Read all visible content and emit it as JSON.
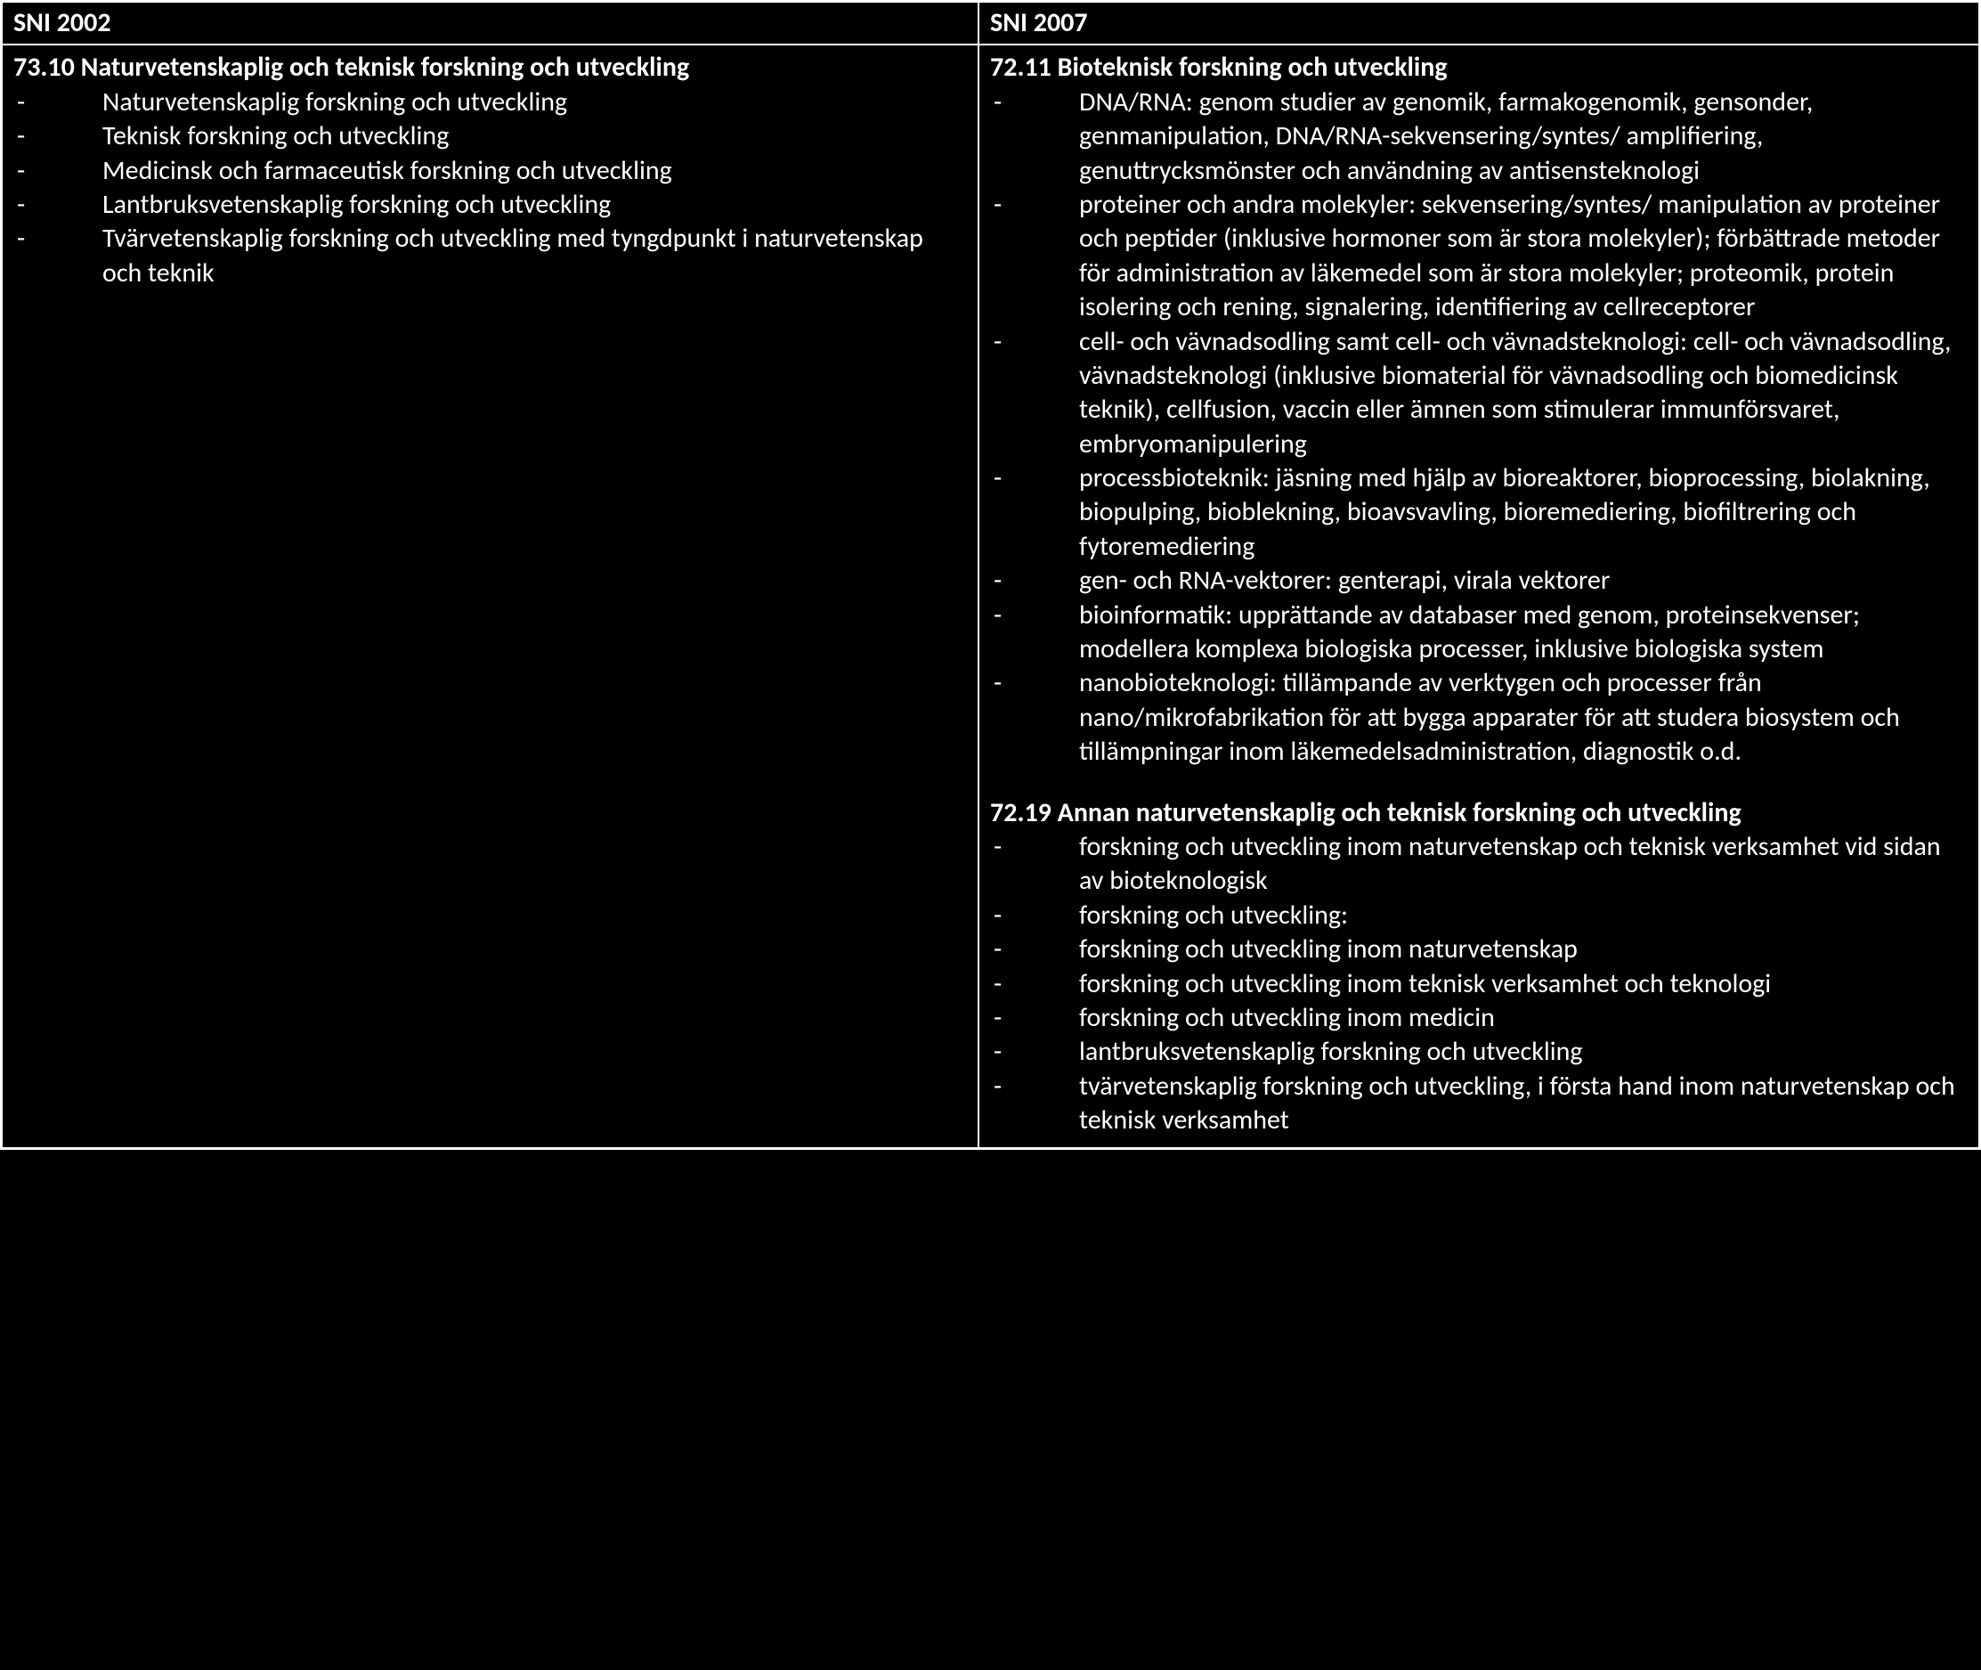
{
  "colors": {
    "background": "#000000",
    "text": "#ffffff",
    "border": "#ffffff"
  },
  "header": {
    "left": "SNI 2002",
    "right": "SNI 2007"
  },
  "left": {
    "section1": {
      "title": "73.10 Naturvetenskaplig och teknisk forskning och utveckling",
      "items": [
        "Naturvetenskaplig forskning och utveckling",
        "Teknisk forskning och utveckling",
        "Medicinsk och farmaceutisk forskning och utveckling",
        "Lantbruksvetenskaplig forskning och utveckling",
        "Tvärvetenskaplig forskning och utveckling med tyngdpunkt i naturvetenskap och teknik"
      ]
    }
  },
  "right": {
    "section1": {
      "title": "72.11 Bioteknisk forskning och utveckling",
      "items": [
        "DNA/RNA: genom studier av genomik, farmakogenomik, gensonder, genmanipulation, DNA/RNA-sekvensering/syntes/ amplifiering, genuttrycksmönster och användning av antisensteknologi",
        "proteiner och andra molekyler: sekvensering/syntes/ manipulation av proteiner och peptider (inklusive hormoner som är stora molekyler); förbättrade metoder för administration av läkemedel som är stora molekyler; proteomik, protein isolering och rening, signalering, identifiering av cellreceptorer",
        "cell- och vävnadsodling samt cell- och vävnadsteknologi: cell- och vävnadsodling, vävnadsteknologi (inklusive biomaterial för vävnadsodling och biomedicinsk teknik), cellfusion, vaccin eller ämnen som stimulerar immunförsvaret, embryomanipulering",
        "processbioteknik: jäsning med hjälp av bioreaktorer, bioprocessing, biolakning, biopulping, bioblekning, bioavsvavling, bioremediering, biofiltrering och fytoremediering",
        "gen- och RNA-vektorer: genterapi, virala vektorer",
        "bioinformatik: upprättande av databaser med genom, proteinsekvenser; modellera komplexa biologiska processer, inklusive biologiska system",
        "nanobioteknologi: tillämpande av verktygen och processer från nano/mikrofabrikation för att bygga apparater för att studera biosystem och tillämpningar inom läkemedelsadministration, diagnostik o.d."
      ]
    },
    "section2": {
      "title": "72.19 Annan naturvetenskaplig och teknisk forskning och utveckling",
      "items": [
        "forskning och utveckling inom naturvetenskap och teknisk verksamhet vid sidan av bioteknologisk",
        "forskning och utveckling:",
        "forskning och utveckling inom naturvetenskap",
        "forskning och utveckling inom teknisk verksamhet och teknologi",
        "forskning och utveckling inom medicin",
        "lantbruksvetenskaplig forskning och utveckling",
        "tvärvetenskaplig forskning och utveckling, i första hand inom naturvetenskap och teknisk verksamhet"
      ]
    }
  }
}
